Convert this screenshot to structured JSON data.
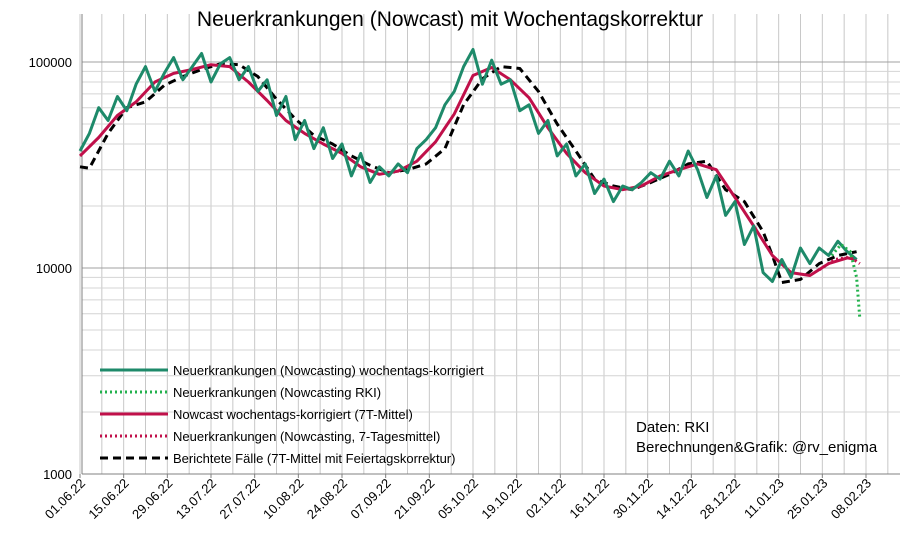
{
  "chart_data": {
    "type": "line",
    "title": "Neuerkrankungen (Nowcast) mit Wochentagskorrektur",
    "xlabel": "",
    "ylabel": "",
    "yscale": "log",
    "ylim": [
      1000,
      150000
    ],
    "yticks": [
      {
        "value": 1000,
        "label": "1000"
      },
      {
        "value": 10000,
        "label": "10000"
      },
      {
        "value": 100000,
        "label": "100000"
      }
    ],
    "x_ticks": [
      "01.06.22",
      "15.06.22",
      "29.06.22",
      "13.07.22",
      "27.07.22",
      "10.08.22",
      "24.08.22",
      "07.09.22",
      "21.09.22",
      "05.10.22",
      "19.10.22",
      "02.11.22",
      "16.11.22",
      "30.11.22",
      "14.12.22",
      "28.12.22",
      "11.01.23",
      "25.01.23",
      "08.02.23"
    ],
    "grid": true,
    "legend_position": "bottom-left",
    "series": [
      {
        "name": "Neuerkrankungen (Nowcasting) wochentags-korrigiert",
        "color": "#1e8a6a",
        "style": "solid",
        "x": [
          "2022-06-01",
          "2022-06-04",
          "2022-06-07",
          "2022-06-10",
          "2022-06-13",
          "2022-06-16",
          "2022-06-19",
          "2022-06-22",
          "2022-06-25",
          "2022-06-28",
          "2022-07-01",
          "2022-07-04",
          "2022-07-07",
          "2022-07-10",
          "2022-07-13",
          "2022-07-16",
          "2022-07-19",
          "2022-07-22",
          "2022-07-25",
          "2022-07-28",
          "2022-07-31",
          "2022-08-03",
          "2022-08-06",
          "2022-08-09",
          "2022-08-12",
          "2022-08-15",
          "2022-08-18",
          "2022-08-21",
          "2022-08-24",
          "2022-08-27",
          "2022-08-30",
          "2022-09-02",
          "2022-09-05",
          "2022-09-08",
          "2022-09-11",
          "2022-09-14",
          "2022-09-17",
          "2022-09-20",
          "2022-09-23",
          "2022-09-26",
          "2022-09-29",
          "2022-10-02",
          "2022-10-05",
          "2022-10-08",
          "2022-10-11",
          "2022-10-14",
          "2022-10-17",
          "2022-10-20",
          "2022-10-23",
          "2022-10-26",
          "2022-10-29",
          "2022-11-01",
          "2022-11-04",
          "2022-11-07",
          "2022-11-10",
          "2022-11-13",
          "2022-11-16",
          "2022-11-19",
          "2022-11-22",
          "2022-11-25",
          "2022-11-28",
          "2022-12-01",
          "2022-12-04",
          "2022-12-07",
          "2022-12-10",
          "2022-12-13",
          "2022-12-16",
          "2022-12-19",
          "2022-12-22",
          "2022-12-25",
          "2022-12-28",
          "2022-12-31",
          "2023-01-03",
          "2023-01-06",
          "2023-01-09",
          "2023-01-12",
          "2023-01-15",
          "2023-01-18",
          "2023-01-21",
          "2023-01-24",
          "2023-01-27",
          "2023-01-30",
          "2023-02-02",
          "2023-02-05"
        ],
        "values": [
          37000,
          45000,
          60000,
          52000,
          68000,
          58000,
          78000,
          95000,
          72000,
          88000,
          105000,
          82000,
          95000,
          110000,
          80000,
          98000,
          105000,
          82000,
          95000,
          72000,
          82000,
          55000,
          68000,
          42000,
          52000,
          38000,
          48000,
          34000,
          40000,
          28000,
          36000,
          26000,
          31000,
          28000,
          32000,
          29000,
          38000,
          42000,
          48000,
          62000,
          72000,
          95000,
          115000,
          78000,
          102000,
          78000,
          82000,
          58000,
          62000,
          45000,
          52000,
          35000,
          40000,
          28000,
          32000,
          23000,
          27000,
          21000,
          25000,
          24000,
          26000,
          29000,
          27000,
          33000,
          28000,
          37000,
          30000,
          22000,
          28000,
          18000,
          21000,
          13000,
          16000,
          9500,
          8600,
          11000,
          9000,
          12500,
          10500,
          12500,
          11500,
          13500,
          12000,
          11000
        ]
      },
      {
        "name": "Neuerkrankungen (Nowcasting RKI)",
        "color": "#22b14c",
        "style": "dotted",
        "x": [
          "2023-01-28",
          "2023-01-31",
          "2023-02-03",
          "2023-02-05",
          "2023-02-06"
        ],
        "values": [
          11500,
          13000,
          12000,
          9000,
          5700
        ]
      },
      {
        "name": "Nowcast wochentags-korrigiert (7T-Mittel)",
        "color": "#c0104a",
        "style": "solid",
        "x": [
          "2022-06-01",
          "2022-06-07",
          "2022-06-13",
          "2022-06-19",
          "2022-06-25",
          "2022-07-01",
          "2022-07-07",
          "2022-07-13",
          "2022-07-19",
          "2022-07-25",
          "2022-07-31",
          "2022-08-06",
          "2022-08-12",
          "2022-08-18",
          "2022-08-24",
          "2022-08-30",
          "2022-09-05",
          "2022-09-11",
          "2022-09-17",
          "2022-09-23",
          "2022-09-29",
          "2022-10-05",
          "2022-10-11",
          "2022-10-17",
          "2022-10-23",
          "2022-10-29",
          "2022-11-04",
          "2022-11-10",
          "2022-11-16",
          "2022-11-22",
          "2022-11-28",
          "2022-12-04",
          "2022-12-10",
          "2022-12-16",
          "2022-12-22",
          "2022-12-28",
          "2023-01-03",
          "2023-01-09",
          "2023-01-15",
          "2023-01-21",
          "2023-01-27",
          "2023-02-02",
          "2023-02-05"
        ],
        "values": [
          35000,
          43000,
          55000,
          64000,
          80000,
          88000,
          92000,
          97000,
          95000,
          80000,
          65000,
          52000,
          45000,
          40000,
          36000,
          31000,
          28500,
          29500,
          33000,
          41000,
          56000,
          86000,
          94000,
          82000,
          67000,
          48000,
          36000,
          29000,
          25000,
          24000,
          25000,
          28000,
          30000,
          32000,
          30000,
          22000,
          16000,
          11500,
          9500,
          9200,
          10500,
          11200,
          11000
        ]
      },
      {
        "name": "Neuerkrankungen (Nowcasting, 7-Tagesmittel)",
        "color": "#c0104a",
        "style": "dotted",
        "x": [
          "2023-01-24",
          "2023-01-29",
          "2023-02-03",
          "2023-02-06"
        ],
        "values": [
          9800,
          11000,
          11300,
          10500
        ]
      },
      {
        "name": "Berichtete Fälle (7T-Mittel mit Feiertagskorrektur)",
        "color": "#000000",
        "style": "dashed",
        "x": [
          "2022-06-01",
          "2022-06-04",
          "2022-06-10",
          "2022-06-16",
          "2022-06-22",
          "2022-06-28",
          "2022-07-04",
          "2022-07-10",
          "2022-07-16",
          "2022-07-22",
          "2022-07-28",
          "2022-08-03",
          "2022-08-09",
          "2022-08-15",
          "2022-08-21",
          "2022-08-27",
          "2022-09-02",
          "2022-09-08",
          "2022-09-14",
          "2022-09-20",
          "2022-09-26",
          "2022-10-02",
          "2022-10-08",
          "2022-10-14",
          "2022-10-20",
          "2022-10-26",
          "2022-11-01",
          "2022-11-07",
          "2022-11-13",
          "2022-11-19",
          "2022-11-25",
          "2022-12-01",
          "2022-12-07",
          "2022-12-13",
          "2022-12-19",
          "2022-12-25",
          "2022-12-31",
          "2023-01-06",
          "2023-01-09",
          "2023-01-12",
          "2023-01-18",
          "2023-01-24",
          "2023-01-30",
          "2023-02-05"
        ],
        "values": [
          31000,
          30500,
          45000,
          60000,
          64000,
          77000,
          85000,
          92000,
          98000,
          97000,
          85000,
          66000,
          53000,
          44000,
          40000,
          35000,
          31500,
          29000,
          30000,
          32000,
          38000,
          62000,
          83000,
          95000,
          93000,
          72000,
          50000,
          37000,
          27000,
          25000,
          24000,
          26000,
          28500,
          32000,
          33000,
          24000,
          21000,
          15000,
          11500,
          8500,
          8800,
          10500,
          11500,
          12000
        ]
      }
    ]
  },
  "credits": {
    "line1": "Daten: RKI",
    "line2": "Berechnungen&Grafik: @rv_enigma"
  }
}
